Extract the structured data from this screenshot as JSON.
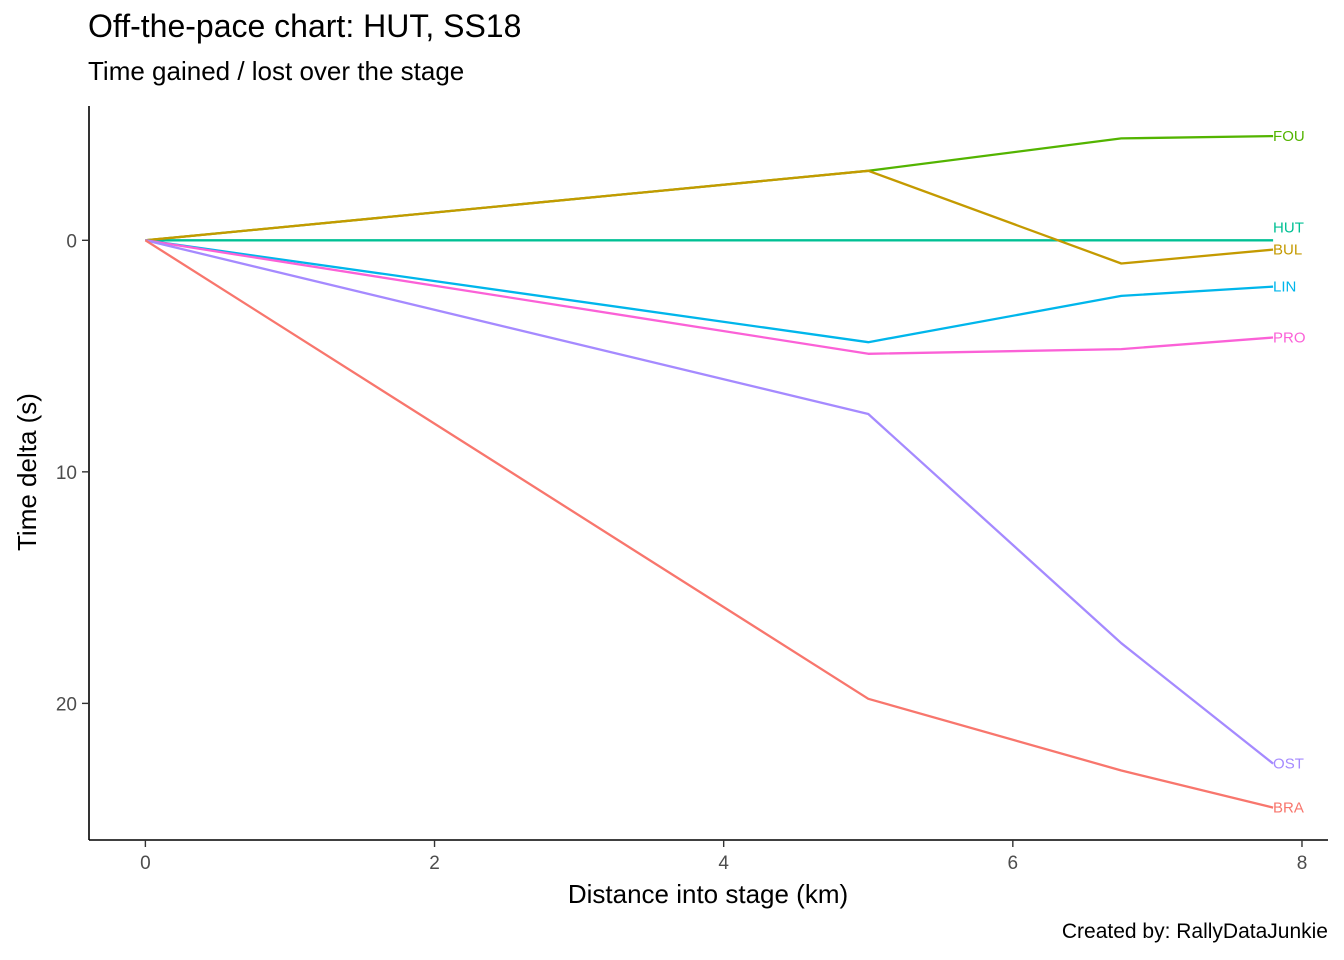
{
  "chart_data": {
    "type": "line",
    "title": "Off-the-pace chart: HUT, SS18",
    "subtitle": "Time gained / lost over the stage",
    "caption": "Created by: RallyDataJunkie",
    "xlabel": "Distance into stage (km)",
    "ylabel": "Time delta (s)",
    "xlim": [
      -0.39,
      8.18
    ],
    "ylim": [
      25.9,
      -5.8
    ],
    "y_reversed": true,
    "x_ticks": [
      0,
      2,
      4,
      6,
      8
    ],
    "y_ticks": [
      0,
      10,
      20
    ],
    "grid": false,
    "legend": "none (direct end labels)",
    "series": [
      {
        "name": "FOU",
        "color": "#53B400",
        "x": [
          0,
          5.0,
          6.75,
          7.8
        ],
        "y": [
          0,
          -3.0,
          -4.4,
          -4.5
        ]
      },
      {
        "name": "HUT",
        "color": "#00C094",
        "x": [
          0,
          5.0,
          6.75,
          7.8
        ],
        "y": [
          0,
          0,
          0,
          0
        ]
      },
      {
        "name": "BUL",
        "color": "#C49A00",
        "x": [
          0,
          5.0,
          6.75,
          7.8
        ],
        "y": [
          0,
          -3.0,
          1.0,
          0.4
        ]
      },
      {
        "name": "LIN",
        "color": "#00B6EB",
        "x": [
          0,
          5.0,
          6.75,
          7.8
        ],
        "y": [
          0,
          4.4,
          2.4,
          2.0
        ]
      },
      {
        "name": "PRO",
        "color": "#FB61D7",
        "x": [
          0,
          5.0,
          6.75,
          7.8
        ],
        "y": [
          0,
          4.9,
          4.7,
          4.2
        ]
      },
      {
        "name": "OST",
        "color": "#A58AFF",
        "x": [
          0,
          5.0,
          6.75,
          7.8
        ],
        "y": [
          0,
          7.5,
          17.4,
          22.6
        ]
      },
      {
        "name": "BRA",
        "color": "#F8766D",
        "x": [
          0,
          5.0,
          6.75,
          7.8
        ],
        "y": [
          0,
          19.8,
          22.9,
          24.5
        ]
      }
    ]
  }
}
